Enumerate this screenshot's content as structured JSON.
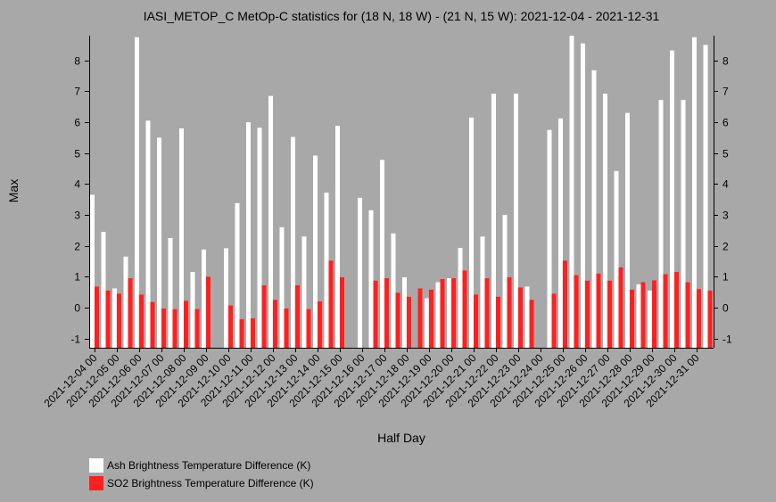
{
  "chart_data": {
    "type": "bar",
    "title": "IASI_METOP_C MetOp-C statistics for (18 N, 18 W) - (21 N, 15 W): 2021-12-04 - 2021-12-31",
    "xlabel": "Half Day",
    "ylabel": "Max",
    "ylim": [
      -1.3,
      8.8
    ],
    "yticks": [
      -1,
      0,
      1,
      2,
      3,
      4,
      5,
      6,
      7,
      8
    ],
    "grid": false,
    "legend_position": "bottom-left",
    "categories": [
      "2021-12-04 00",
      "2021-12-04 12",
      "2021-12-05 00",
      "2021-12-05 12",
      "2021-12-06 00",
      "2021-12-06 12",
      "2021-12-07 00",
      "2021-12-07 12",
      "2021-12-08 00",
      "2021-12-08 12",
      "2021-12-09 00",
      "2021-12-09 12",
      "2021-12-10 00",
      "2021-12-10 12",
      "2021-12-11 00",
      "2021-12-11 12",
      "2021-12-12 00",
      "2021-12-12 12",
      "2021-12-13 00",
      "2021-12-13 12",
      "2021-12-14 00",
      "2021-12-14 12",
      "2021-12-15 00",
      "2021-12-15 12",
      "2021-12-16 00",
      "2021-12-16 12",
      "2021-12-17 00",
      "2021-12-17 12",
      "2021-12-18 00",
      "2021-12-18 12",
      "2021-12-19 00",
      "2021-12-19 12",
      "2021-12-20 00",
      "2021-12-20 12",
      "2021-12-21 00",
      "2021-12-21 12",
      "2021-12-22 00",
      "2021-12-22 12",
      "2021-12-23 00",
      "2021-12-23 12",
      "2021-12-24 00",
      "2021-12-24 12",
      "2021-12-25 00",
      "2021-12-25 12",
      "2021-12-26 00",
      "2021-12-26 12",
      "2021-12-27 00",
      "2021-12-27 12",
      "2021-12-28 00",
      "2021-12-28 12",
      "2021-12-29 00",
      "2021-12-29 12",
      "2021-12-30 00",
      "2021-12-30 12",
      "2021-12-31 00",
      "2021-12-31 12"
    ],
    "tick_labels": [
      "2021-12-04 00",
      "2021-12-05 00",
      "2021-12-06 00",
      "2021-12-07 00",
      "2021-12-08 00",
      "2021-12-09 00",
      "2021-12-10 00",
      "2021-12-11 00",
      "2021-12-12 00",
      "2021-12-13 00",
      "2021-12-14 00",
      "2021-12-15 00",
      "2021-12-16 00",
      "2021-12-17 00",
      "2021-12-18 00",
      "2021-12-19 00",
      "2021-12-20 00",
      "2021-12-21 00",
      "2021-12-22 00",
      "2021-12-23 00",
      "2021-12-24 00",
      "2021-12-25 00",
      "2021-12-26 00",
      "2021-12-27 00",
      "2021-12-28 00",
      "2021-12-29 00",
      "2021-12-30 00",
      "2021-12-31 00"
    ],
    "series": [
      {
        "name": "Ash Brightness Temperature Difference (K)",
        "color": "#ffffff",
        "values": [
          3.65,
          2.45,
          0.62,
          1.65,
          8.75,
          6.05,
          5.5,
          2.25,
          5.8,
          1.15,
          1.88,
          null,
          1.92,
          3.38,
          6.0,
          5.82,
          6.85,
          2.6,
          5.52,
          2.3,
          4.92,
          3.72,
          5.88,
          null,
          3.55,
          3.15,
          4.78,
          2.4,
          0.98,
          null,
          0.3,
          0.82,
          0.95,
          1.93,
          6.15,
          2.3,
          6.92,
          3.0,
          6.92,
          0.68,
          null,
          5.75,
          6.12,
          8.8,
          8.55,
          7.68,
          6.92,
          4.42,
          6.3,
          0.75,
          0.55,
          6.72,
          8.32,
          6.72,
          8.75,
          8.5
        ]
      },
      {
        "name": "SO2 Brightness Temperature Difference (K)",
        "color": "#ff2020",
        "values": [
          0.68,
          0.55,
          0.45,
          0.95,
          0.42,
          0.18,
          -0.03,
          -0.05,
          0.22,
          -0.05,
          1.0,
          null,
          0.07,
          -0.38,
          -0.35,
          0.72,
          0.25,
          -0.03,
          0.72,
          -0.05,
          0.2,
          1.52,
          0.98,
          null,
          null,
          0.87,
          0.95,
          0.48,
          0.35,
          0.62,
          0.58,
          0.92,
          0.95,
          1.2,
          0.42,
          0.95,
          0.35,
          0.98,
          0.65,
          0.25,
          null,
          0.45,
          1.52,
          1.05,
          0.87,
          1.1,
          0.87,
          1.3,
          0.58,
          0.82,
          0.88,
          1.08,
          1.15,
          0.82,
          0.6,
          0.55
        ]
      }
    ]
  }
}
